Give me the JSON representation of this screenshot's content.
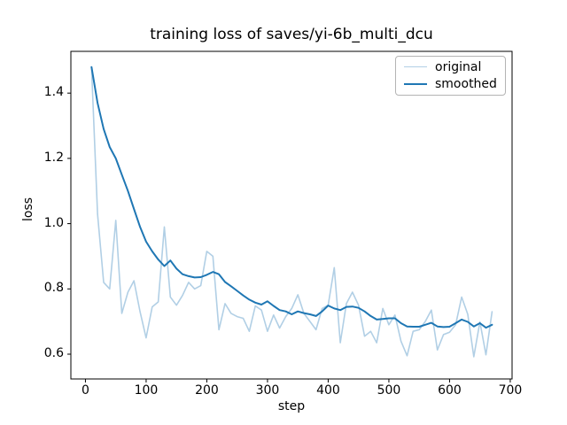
{
  "figure": {
    "title": "training loss of saves/yi-6b_multi_dcu",
    "xlabel": "step",
    "ylabel": "loss"
  },
  "legend": {
    "position": "upper right",
    "entries": [
      {
        "label": "original",
        "color": "#b1cfe5",
        "line_width": 1.5
      },
      {
        "label": "smoothed",
        "color": "#1f77b4",
        "line_width": 2
      }
    ]
  },
  "chart_data": {
    "type": "line",
    "title": "training loss of saves/yi-6b_multi_dcu",
    "xlabel": "step",
    "ylabel": "loss",
    "xlim": [
      -24,
      703
    ],
    "ylim": [
      0.524,
      1.528
    ],
    "x_ticks": [
      0,
      100,
      200,
      300,
      400,
      500,
      600,
      700
    ],
    "y_ticks": [
      0.6,
      0.8,
      1.0,
      1.2,
      1.4
    ],
    "grid": false,
    "legend_position": "upper right",
    "x": [
      10,
      20,
      30,
      40,
      50,
      60,
      70,
      80,
      90,
      100,
      110,
      120,
      130,
      140,
      150,
      160,
      170,
      180,
      190,
      200,
      210,
      220,
      230,
      240,
      250,
      260,
      270,
      280,
      290,
      300,
      310,
      320,
      330,
      340,
      350,
      360,
      370,
      380,
      390,
      400,
      410,
      420,
      430,
      440,
      450,
      460,
      470,
      480,
      490,
      500,
      510,
      520,
      530,
      540,
      550,
      560,
      570,
      580,
      590,
      600,
      610,
      620,
      630,
      640,
      650,
      660,
      670
    ],
    "series": [
      {
        "name": "original",
        "color": "#b1cfe5",
        "width": 1.6,
        "values": [
          1.48,
          1.03,
          0.82,
          0.8,
          1.01,
          0.725,
          0.79,
          0.825,
          0.73,
          0.65,
          0.745,
          0.76,
          0.99,
          0.775,
          0.75,
          0.78,
          0.82,
          0.8,
          0.81,
          0.915,
          0.9,
          0.675,
          0.755,
          0.725,
          0.715,
          0.71,
          0.67,
          0.748,
          0.735,
          0.67,
          0.72,
          0.68,
          0.715,
          0.74,
          0.782,
          0.725,
          0.7,
          0.675,
          0.74,
          0.75,
          0.865,
          0.635,
          0.755,
          0.79,
          0.75,
          0.655,
          0.67,
          0.635,
          0.74,
          0.69,
          0.72,
          0.64,
          0.595,
          0.67,
          0.675,
          0.7,
          0.735,
          0.613,
          0.66,
          0.667,
          0.69,
          0.775,
          0.722,
          0.592,
          0.699,
          0.598,
          0.73
        ]
      },
      {
        "name": "smoothed",
        "color": "#1f77b4",
        "width": 2,
        "values": [
          1.48,
          1.37,
          1.29,
          1.235,
          1.2,
          1.15,
          1.1,
          1.045,
          0.99,
          0.945,
          0.915,
          0.89,
          0.87,
          0.887,
          0.862,
          0.845,
          0.839,
          0.835,
          0.836,
          0.843,
          0.852,
          0.845,
          0.821,
          0.808,
          0.794,
          0.78,
          0.767,
          0.758,
          0.752,
          0.762,
          0.748,
          0.735,
          0.731,
          0.722,
          0.731,
          0.726,
          0.722,
          0.717,
          0.731,
          0.749,
          0.74,
          0.735,
          0.745,
          0.746,
          0.742,
          0.731,
          0.717,
          0.706,
          0.708,
          0.71,
          0.71,
          0.695,
          0.685,
          0.684,
          0.684,
          0.69,
          0.696,
          0.685,
          0.683,
          0.684,
          0.695,
          0.706,
          0.699,
          0.685,
          0.695,
          0.681,
          0.69
        ]
      }
    ]
  },
  "axes_style": {
    "spine_color": "#000000",
    "tick_color": "#000000",
    "background": "#ffffff"
  }
}
